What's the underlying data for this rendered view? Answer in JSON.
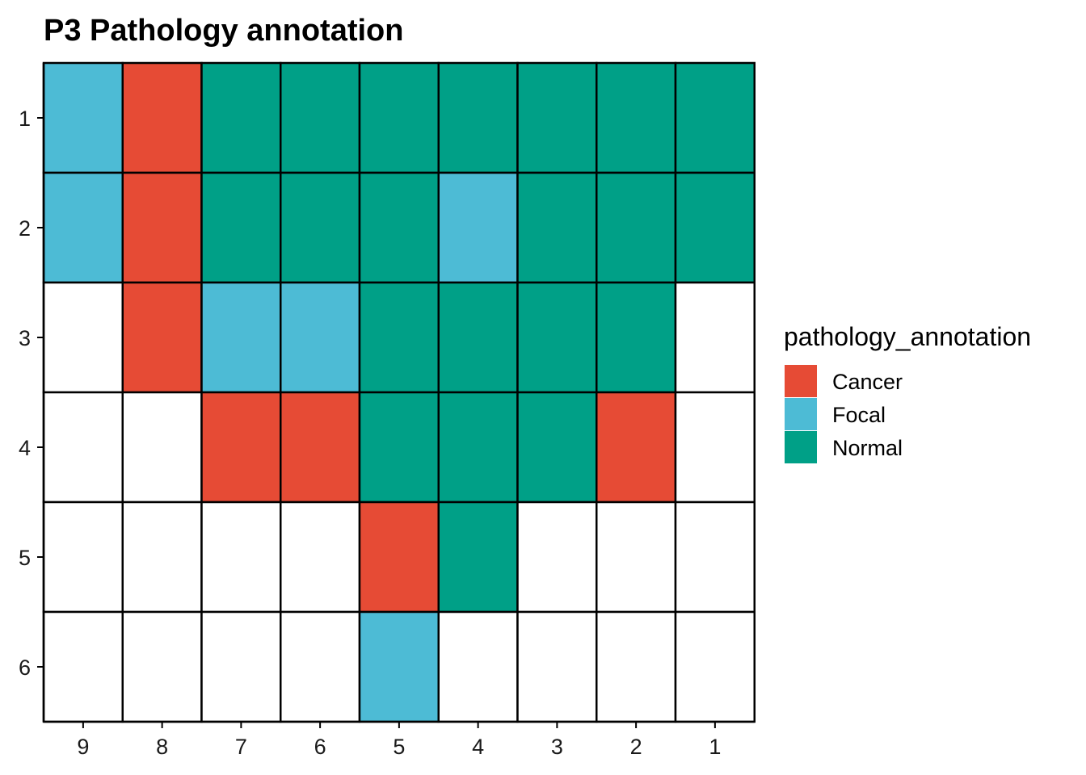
{
  "chart_data": {
    "type": "heatmap",
    "title": "P3 Pathology annotation",
    "xlabel": "",
    "ylabel": "",
    "x_categories": [
      "9",
      "8",
      "7",
      "6",
      "5",
      "4",
      "3",
      "2",
      "1"
    ],
    "y_categories": [
      "1",
      "2",
      "3",
      "4",
      "5",
      "6"
    ],
    "legend": {
      "title": "pathology_annotation",
      "position": "right",
      "entries": [
        {
          "label": "Cancer",
          "color": "#E64B35"
        },
        {
          "label": "Focal",
          "color": "#4DBBD5"
        },
        {
          "label": "Normal",
          "color": "#00A087"
        }
      ]
    },
    "colors": {
      "Cancer": "#E64B35",
      "Focal": "#4DBBD5",
      "Normal": "#00A087",
      "empty": "#FFFFFF",
      "border": "#000000"
    },
    "grid": false,
    "cells": [
      [
        "Focal",
        "Cancer",
        "Normal",
        "Normal",
        "Normal",
        "Normal",
        "Normal",
        "Normal",
        "Normal"
      ],
      [
        "Focal",
        "Cancer",
        "Normal",
        "Normal",
        "Normal",
        "Focal",
        "Normal",
        "Normal",
        "Normal"
      ],
      [
        null,
        "Cancer",
        "Focal",
        "Focal",
        "Normal",
        "Normal",
        "Normal",
        "Normal",
        null
      ],
      [
        null,
        null,
        "Cancer",
        "Cancer",
        "Normal",
        "Normal",
        "Normal",
        "Cancer",
        null
      ],
      [
        null,
        null,
        null,
        null,
        "Cancer",
        "Normal",
        null,
        null,
        null
      ],
      [
        null,
        null,
        null,
        null,
        "Focal",
        null,
        null,
        null,
        null
      ]
    ]
  }
}
